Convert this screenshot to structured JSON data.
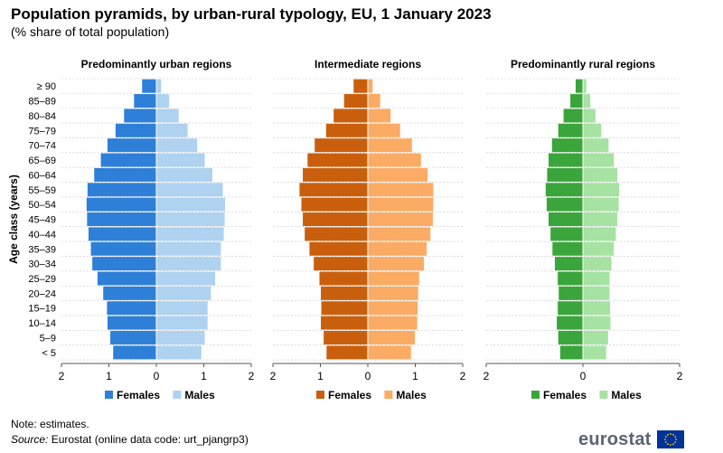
{
  "title": "Population pyramids, by urban-rural typology, EU, 1 January 2023",
  "subtitle": "(% share of total population)",
  "note": "Note: estimates.",
  "source": {
    "label": "Source:",
    "text": "Eurostat (online data code: urt_pjangrp3)"
  },
  "logo": {
    "text": "eurostat",
    "flag_color": "#003399",
    "star_color": "#FFCC00"
  },
  "chart_data": [
    {
      "type": "bar",
      "title": "Predominantly urban regions",
      "ylabel": "Age class (years)",
      "xlim": [
        -2,
        2
      ],
      "x_ticks": [
        "2",
        "1",
        "0",
        "1",
        "2"
      ],
      "grid": false,
      "legend_position": "bottom",
      "categories": [
        "≥ 90",
        "85–89",
        "80–84",
        "75–79",
        "70–74",
        "65–69",
        "60–64",
        "55–59",
        "50–54",
        "45–49",
        "40–44",
        "35–39",
        "30–34",
        "25–29",
        "20–24",
        "15–19",
        "10–14",
        "5–9",
        "< 5"
      ],
      "series": [
        {
          "name": "Females",
          "color": "#2e7fd8",
          "values": [
            0.3,
            0.47,
            0.68,
            0.86,
            1.03,
            1.17,
            1.31,
            1.45,
            1.47,
            1.46,
            1.43,
            1.38,
            1.35,
            1.24,
            1.12,
            1.04,
            1.03,
            0.97,
            0.91
          ]
        },
        {
          "name": "Males",
          "color": "#aed2f0",
          "values": [
            0.1,
            0.27,
            0.47,
            0.66,
            0.86,
            1.02,
            1.18,
            1.4,
            1.45,
            1.44,
            1.42,
            1.36,
            1.36,
            1.24,
            1.15,
            1.08,
            1.08,
            1.02,
            0.95
          ]
        }
      ]
    },
    {
      "type": "bar",
      "title": "Intermediate regions",
      "xlim": [
        -2,
        2
      ],
      "x_ticks": [
        "2",
        "1",
        "0",
        "1",
        "2"
      ],
      "grid": false,
      "legend_position": "bottom",
      "categories": [
        "≥ 90",
        "85–89",
        "80–84",
        "75–79",
        "70–74",
        "65–69",
        "60–64",
        "55–59",
        "50–54",
        "45–49",
        "40–44",
        "35–39",
        "30–34",
        "25–29",
        "20–24",
        "15–19",
        "10–14",
        "5–9",
        "< 5"
      ],
      "series": [
        {
          "name": "Females",
          "color": "#c95f0d",
          "values": [
            0.3,
            0.5,
            0.72,
            0.88,
            1.12,
            1.27,
            1.37,
            1.44,
            1.4,
            1.37,
            1.33,
            1.23,
            1.14,
            1.02,
            0.99,
            0.98,
            0.99,
            0.93,
            0.87
          ]
        },
        {
          "name": "Males",
          "color": "#fbab63",
          "values": [
            0.1,
            0.26,
            0.48,
            0.68,
            0.93,
            1.12,
            1.26,
            1.38,
            1.38,
            1.37,
            1.32,
            1.24,
            1.18,
            1.08,
            1.06,
            1.05,
            1.04,
            0.99,
            0.91
          ]
        }
      ]
    },
    {
      "type": "bar",
      "title": "Predominantly rural regions",
      "xlim": [
        -2,
        2
      ],
      "x_ticks": [
        "2",
        "0",
        "2"
      ],
      "grid": false,
      "legend_position": "bottom",
      "categories": [
        "≥ 90",
        "85–89",
        "80–84",
        "75–79",
        "70–74",
        "65–69",
        "60–64",
        "55–59",
        "50–54",
        "45–49",
        "40–44",
        "35–39",
        "30–34",
        "25–29",
        "20–24",
        "15–19",
        "10–14",
        "5–9",
        "< 5"
      ],
      "series": [
        {
          "name": "Females",
          "color": "#3aa53a",
          "values": [
            0.15,
            0.26,
            0.4,
            0.51,
            0.64,
            0.71,
            0.74,
            0.77,
            0.75,
            0.71,
            0.67,
            0.63,
            0.58,
            0.52,
            0.5,
            0.52,
            0.54,
            0.51,
            0.47
          ]
        },
        {
          "name": "Males",
          "color": "#a6e2a2",
          "values": [
            0.07,
            0.15,
            0.26,
            0.38,
            0.53,
            0.64,
            0.71,
            0.75,
            0.74,
            0.71,
            0.68,
            0.64,
            0.59,
            0.55,
            0.55,
            0.56,
            0.57,
            0.52,
            0.48
          ]
        }
      ]
    }
  ]
}
